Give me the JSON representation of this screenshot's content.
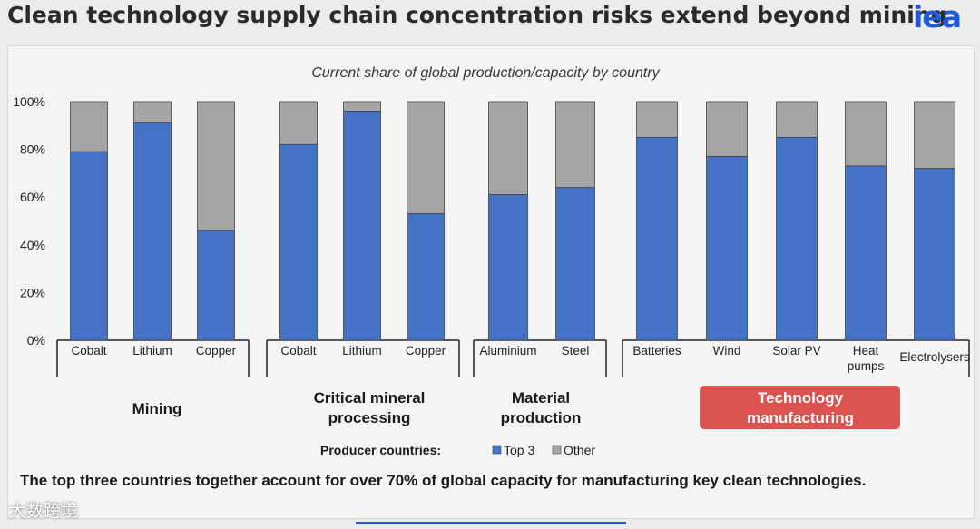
{
  "slide": {
    "title": "Clean technology supply chain concentration risks extend beyond mining",
    "logo_text": "iea",
    "caption": "The top three countries together account for over 70% of global capacity for manufacturing key clean technologies.",
    "watermark": "大数跨境"
  },
  "colors": {
    "top3": "#4472c4",
    "other": "#a5a5a5",
    "highlight": "#d9534f",
    "brand": "#1e5bd8"
  },
  "chart_data": {
    "type": "bar",
    "stacked": true,
    "title": "Current share of global production/capacity by country",
    "ylim": [
      0,
      100
    ],
    "yticks": [
      "0%",
      "20%",
      "40%",
      "60%",
      "80%",
      "100%"
    ],
    "legend_label": "Producer countries:",
    "groups": [
      {
        "label": "Mining",
        "highlighted": false,
        "categories": [
          "Cobalt",
          "Lithium",
          "Copper"
        ],
        "top3": [
          79,
          91,
          46
        ]
      },
      {
        "label": "Critical mineral processing",
        "highlighted": false,
        "categories": [
          "Cobalt",
          "Lithium",
          "Copper"
        ],
        "top3": [
          82,
          96,
          53
        ]
      },
      {
        "label": "Material production",
        "highlighted": false,
        "categories": [
          "Aluminium",
          "Steel"
        ],
        "top3": [
          61,
          64
        ]
      },
      {
        "label": "Technology manufacturing",
        "highlighted": true,
        "categories": [
          "Batteries",
          "Wind",
          "Solar PV",
          "Heat pumps",
          "Electrolysers"
        ],
        "top3": [
          85,
          77,
          85,
          73,
          72
        ]
      }
    ],
    "series": [
      {
        "name": "Top 3"
      },
      {
        "name": "Other"
      }
    ]
  }
}
